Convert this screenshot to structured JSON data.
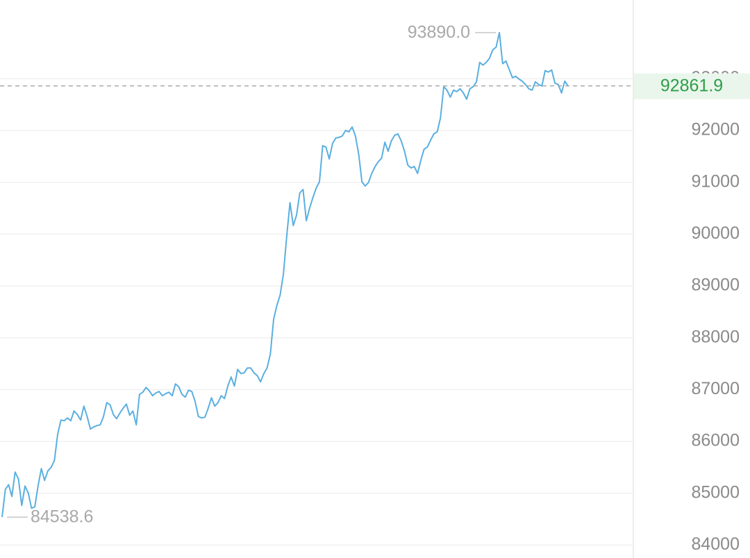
{
  "chart_data": {
    "type": "line",
    "color": "#5aafe0",
    "values": [
      84538.6,
      85072,
      85166,
      84938,
      85408,
      85273,
      84764,
      85139,
      85005,
      84710,
      84737,
      85139,
      85475,
      85247,
      85434,
      85501,
      85635,
      86145,
      86413,
      86399,
      86453,
      86399,
      86587,
      86520,
      86413,
      86681,
      86480,
      86239,
      86279,
      86306,
      86319,
      86480,
      86748,
      86708,
      86520,
      86440,
      86547,
      86641,
      86721,
      86507,
      86587,
      86319,
      86909,
      86949,
      87043,
      86976,
      86882,
      86936,
      86963,
      86882,
      86922,
      86949,
      86882,
      87110,
      87056,
      86909,
      86855,
      86989,
      86963,
      86775,
      86480,
      86453,
      86466,
      86641,
      86842,
      86681,
      86748,
      86882,
      86828,
      87070,
      87244,
      87070,
      87391,
      87311,
      87324,
      87418,
      87418,
      87324,
      87271,
      87150,
      87311,
      87418,
      87686,
      88357,
      88625,
      88826,
      89228,
      89965,
      90609,
      90166,
      90367,
      90796,
      90863,
      90260,
      90501,
      90703,
      90890,
      91011,
      91708,
      91681,
      91453,
      91748,
      91855,
      91869,
      91896,
      92003,
      91976,
      92070,
      91896,
      91547,
      91011,
      90930,
      90997,
      91172,
      91306,
      91400,
      91467,
      91775,
      91601,
      91802,
      91909,
      91936,
      91802,
      91601,
      91333,
      91279,
      91306,
      91172,
      91426,
      91641,
      91681,
      91815,
      91936,
      91976,
      92244,
      92847,
      92780,
      92646,
      92780,
      92753,
      92807,
      92727,
      92606,
      92807,
      92847,
      92941,
      93316,
      93263,
      93316,
      93397,
      93558,
      93611,
      93890,
      93290,
      93343,
      93182,
      93021,
      93048,
      92994,
      92954,
      92888,
      92807,
      92780,
      92941,
      92888,
      92861,
      93156,
      93129,
      93169,
      92914,
      92888,
      92727,
      92954,
      92861.9
    ],
    "ylim": [
      83750,
      94520
    ],
    "yticks": [
      84000,
      85000,
      86000,
      87000,
      88000,
      89000,
      90000,
      91000,
      92000,
      93000
    ],
    "grid": true,
    "max_annotation": {
      "value": 93890.0,
      "label": "93890.0"
    },
    "min_annotation": {
      "value": 84538.6,
      "label": "84538.6"
    },
    "current_price": {
      "value": 92861.9,
      "label": "92861.9"
    }
  }
}
